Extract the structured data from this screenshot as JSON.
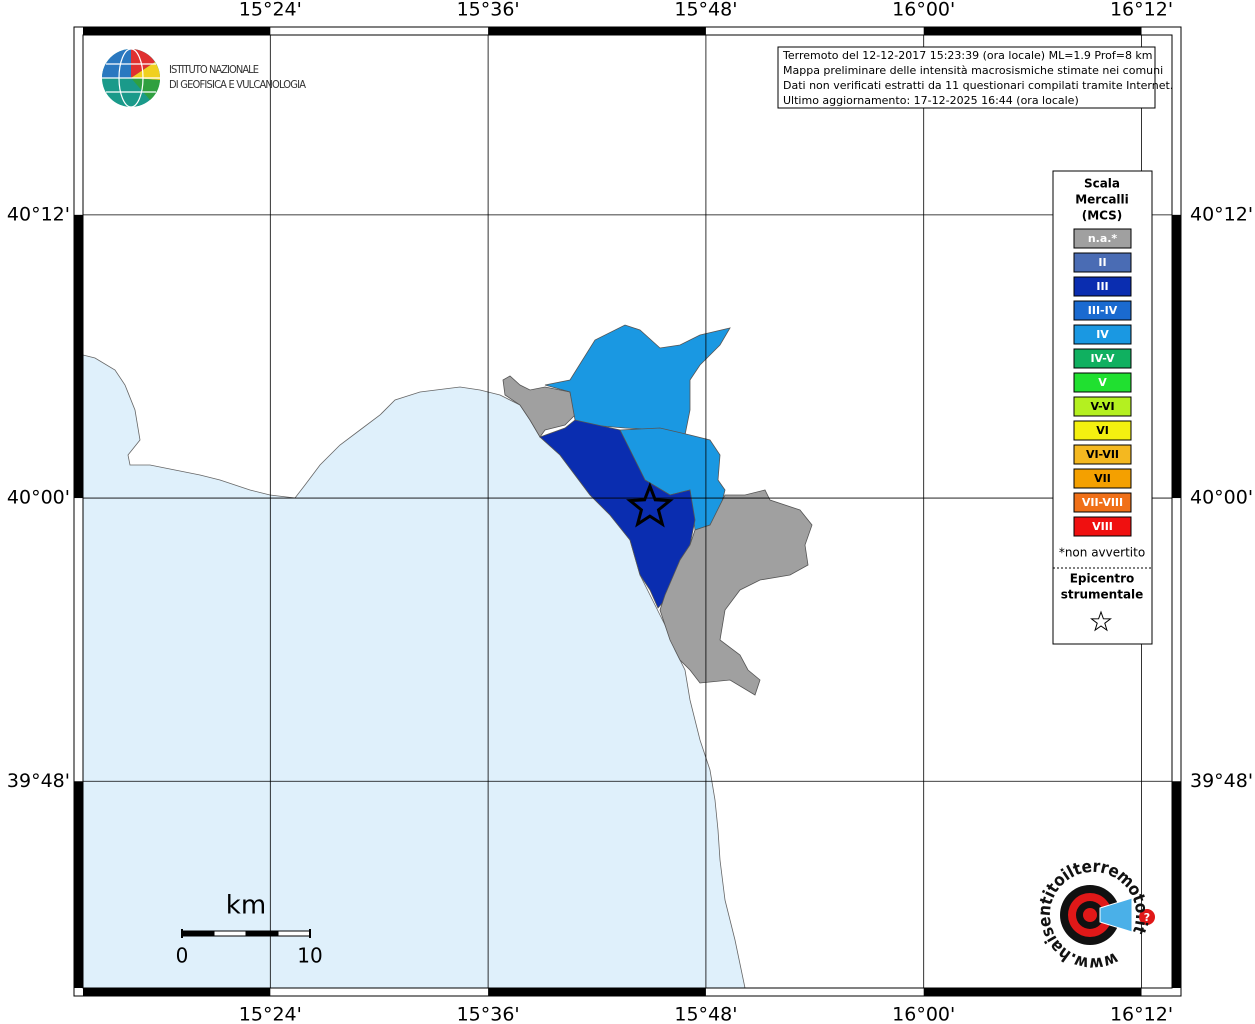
{
  "map": {
    "lonlim": [
      15.228,
      16.228
    ],
    "latlim": [
      39.654,
      40.327
    ],
    "lon_ticks": [
      {
        "value": 15.4,
        "label": "15°24'"
      },
      {
        "value": 15.6,
        "label": "15°36'"
      },
      {
        "value": 15.8,
        "label": "15°48'"
      },
      {
        "value": 16.0,
        "label": "16°00'"
      },
      {
        "value": 16.2,
        "label": "16°12'"
      }
    ],
    "lat_ticks": [
      {
        "value": 40.2,
        "label": "40°12'"
      },
      {
        "value": 40.0,
        "label": "40°00'"
      },
      {
        "value": 39.8,
        "label": "39°48'"
      }
    ],
    "grid": true,
    "epicenter": {
      "lon": 15.7486,
      "lat": 39.9936
    }
  },
  "logo": {
    "line1": "ISTITUTO NAZIONALE",
    "line2": "DI GEOFISICA E VULCANOLOGIA"
  },
  "info": {
    "lines": [
      "Terremoto del 12-12-2017 15:23:39 (ora locale) ML=1.9 Prof=8 km",
      "Mappa preliminare delle intensità macrosismiche stimate nei comuni",
      "Dati non verificati estratti da 11 questionari compilati tramite Internet.",
      "Ultimo aggiornamento: 17-12-2025 16:44 (ora locale)"
    ]
  },
  "legend": {
    "title": [
      "Scala",
      "Mercalli",
      "(MCS)"
    ],
    "items": [
      {
        "label": "n.a.*",
        "color": "#a0a0a0"
      },
      {
        "label": "II",
        "color": "#4a6cb4"
      },
      {
        "label": "III",
        "color": "#0a2db0"
      },
      {
        "label": "III-IV",
        "color": "#1a6ad0"
      },
      {
        "label": "IV",
        "color": "#1a98e2"
      },
      {
        "label": "IV-V",
        "color": "#10b060"
      },
      {
        "label": "V",
        "color": "#20e030"
      },
      {
        "label": "V-VI",
        "color": "#b4f020"
      },
      {
        "label": "VI",
        "color": "#f4f010"
      },
      {
        "label": "VI-VII",
        "color": "#f4b820"
      },
      {
        "label": "VII",
        "color": "#f4a000"
      },
      {
        "label": "VII-VIII",
        "color": "#f07018"
      },
      {
        "label": "VIII",
        "color": "#f01010"
      }
    ],
    "note": "*non avvertito",
    "epicenter_label": [
      "Epicentro",
      "strumentale"
    ]
  },
  "scale_bar": {
    "unit": "km",
    "ticks": [
      0,
      10
    ]
  },
  "site_logo": {
    "text": "www.haisentitoilterremoto.it"
  }
}
